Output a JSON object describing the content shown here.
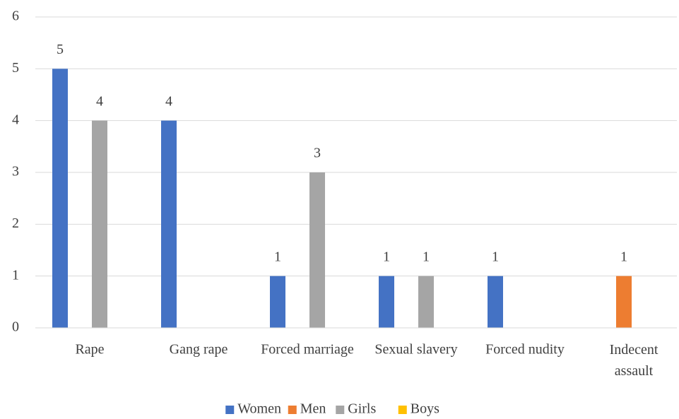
{
  "chart_data": {
    "type": "bar",
    "categories": [
      "Rape",
      "Gang rape",
      "Forced marriage",
      "Sexual slavery",
      "Forced nudity",
      "Indecent assault"
    ],
    "series": [
      {
        "name": "Women",
        "color": "#4472c4",
        "values": [
          5,
          4,
          1,
          1,
          1,
          null
        ]
      },
      {
        "name": "Men",
        "color": "#ed7d31",
        "values": [
          null,
          null,
          null,
          null,
          null,
          1
        ]
      },
      {
        "name": "Girls",
        "color": "#a5a5a5",
        "values": [
          4,
          null,
          3,
          1,
          null,
          null
        ]
      },
      {
        "name": "Boys",
        "color": "#ffc000",
        "values": [
          null,
          null,
          null,
          null,
          null,
          null
        ]
      }
    ],
    "ylim": [
      0,
      6
    ],
    "yticks": [
      0,
      1,
      2,
      3,
      4,
      5,
      6
    ],
    "grid": true,
    "legend": "bottom"
  }
}
